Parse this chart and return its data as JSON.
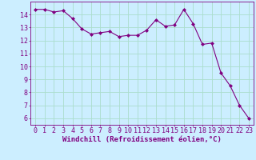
{
  "x": [
    0,
    1,
    2,
    3,
    4,
    5,
    6,
    7,
    8,
    9,
    10,
    11,
    12,
    13,
    14,
    15,
    16,
    17,
    18,
    19,
    20,
    21,
    22,
    23
  ],
  "y": [
    14.4,
    14.4,
    14.2,
    14.3,
    13.7,
    12.9,
    12.5,
    12.6,
    12.7,
    12.3,
    12.4,
    12.4,
    12.8,
    13.6,
    13.1,
    13.2,
    14.4,
    13.3,
    11.7,
    11.8,
    9.5,
    8.5,
    7.0,
    6.0
  ],
  "line_color": "#800080",
  "marker": "D",
  "marker_size": 2,
  "bg_color": "#cceeff",
  "grid_color": "#aaddcc",
  "xlabel": "Windchill (Refroidissement éolien,°C)",
  "xlim": [
    -0.5,
    23.5
  ],
  "ylim": [
    5.5,
    15.0
  ],
  "yticks": [
    6,
    7,
    8,
    9,
    10,
    11,
    12,
    13,
    14
  ],
  "xticks": [
    0,
    1,
    2,
    3,
    4,
    5,
    6,
    7,
    8,
    9,
    10,
    11,
    12,
    13,
    14,
    15,
    16,
    17,
    18,
    19,
    20,
    21,
    22,
    23
  ],
  "tick_color": "#800080",
  "label_color": "#800080",
  "font_size": 6.0,
  "xlabel_fontsize": 6.5
}
